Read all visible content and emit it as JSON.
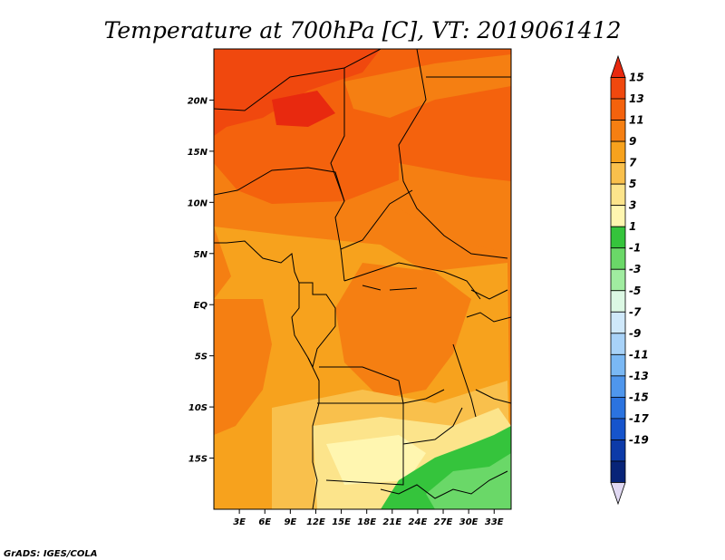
{
  "title": "Temperature at 700hPa [C], VT: 2019061412",
  "credit": "GrADS: IGES/COLA",
  "map": {
    "lon_range": [
      0,
      35
    ],
    "lat_range": [
      -20,
      25
    ],
    "x_ticks": [
      "3E",
      "6E",
      "9E",
      "12E",
      "15E",
      "18E",
      "21E",
      "24E",
      "27E",
      "30E",
      "33E"
    ],
    "x_tick_values": [
      3,
      6,
      9,
      12,
      15,
      18,
      21,
      24,
      27,
      30,
      33
    ],
    "y_ticks": [
      "20N",
      "15N",
      "10N",
      "5N",
      "EQ",
      "5S",
      "10S",
      "15S"
    ],
    "y_tick_values": [
      20,
      15,
      10,
      5,
      0,
      -5,
      -10,
      -15
    ]
  },
  "colorbar": {
    "labels": [
      "15",
      "13",
      "11",
      "9",
      "7",
      "5",
      "3",
      "1",
      "-1",
      "-3",
      "-5",
      "-7",
      "-9",
      "-11",
      "-13",
      "-15",
      "-17",
      "-19"
    ],
    "colors": [
      "#e8290f",
      "#f0480e",
      "#f4620d",
      "#f57f12",
      "#f7a21d",
      "#f9c04c",
      "#fce48b",
      "#fff6b0",
      "#35c43c",
      "#6ad868",
      "#a0ecA0",
      "#dcf8e4",
      "#cfe8fa",
      "#a8d2f8",
      "#7ab8f4",
      "#4f96ec",
      "#2b73df",
      "#1654cc",
      "#0c3aa8",
      "#082478",
      "#e0d8f2"
    ]
  }
}
